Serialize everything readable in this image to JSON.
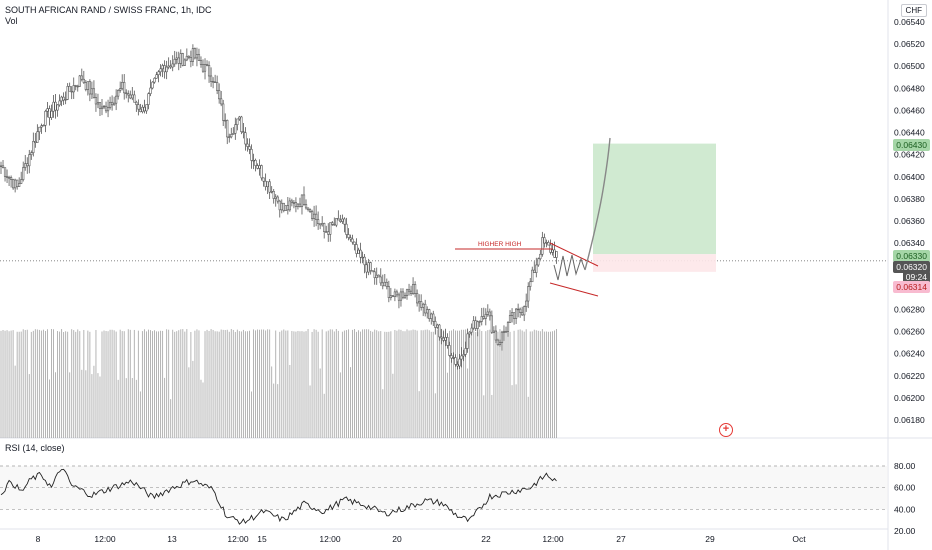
{
  "header": {
    "symbol_title": "SOUTH AFRICAN RAND / SWISS FRANC, 1h, IDC",
    "volume_label": "Vol",
    "currency": "CHF"
  },
  "rsi": {
    "label": "RSI (14, close)",
    "levels": [
      "80.00",
      "60.00",
      "40.00",
      "20.00"
    ]
  },
  "annotation": {
    "higher_high_text": "HIGHER HIGH"
  },
  "price_badges": {
    "target": "0.06430",
    "entry": "0.06330",
    "current": "0.06320",
    "countdown": "09:24",
    "stop": "0.06314"
  },
  "colors": {
    "candle": "#555555",
    "volume": "#9e9e9e",
    "trendline": "#c62828",
    "target_zone": "#c8e6c9",
    "stop_zone": "#fde7e9",
    "target_badge": "#a5d6a7",
    "stop_badge": "#f8bbd0",
    "current_badge": "#555555"
  },
  "chart_data": {
    "type": "candlestick",
    "title": "SOUTH AFRICAN RAND / SWISS FRANC, 1h, IDC",
    "interval": "1h",
    "y_axis": {
      "ticks": [
        "0.06540",
        "0.06520",
        "0.06500",
        "0.06480",
        "0.06460",
        "0.06440",
        "0.06420",
        "0.06400",
        "0.06380",
        "0.06360",
        "0.06340",
        "0.06280",
        "0.06260",
        "0.06240",
        "0.06220",
        "0.06200",
        "0.06180"
      ],
      "range": [
        0.06168,
        0.06545
      ]
    },
    "x_axis": {
      "ticks": [
        "8",
        "12:00",
        "13",
        "12:00",
        "15",
        "12:00",
        "20",
        "22",
        "12:00",
        "27",
        "29",
        "Oct"
      ]
    },
    "price_path_keypoints": [
      [
        0,
        0.0641
      ],
      [
        8,
        0.0639
      ],
      [
        20,
        0.0645
      ],
      [
        30,
        0.0647
      ],
      [
        40,
        0.0649
      ],
      [
        50,
        0.0646
      ],
      [
        60,
        0.0648
      ],
      [
        70,
        0.0646
      ],
      [
        80,
        0.065
      ],
      [
        95,
        0.0651
      ],
      [
        105,
        0.0649
      ],
      [
        112,
        0.0644
      ],
      [
        118,
        0.0645
      ],
      [
        124,
        0.0642
      ],
      [
        130,
        0.064
      ],
      [
        140,
        0.0637
      ],
      [
        150,
        0.0638
      ],
      [
        160,
        0.0635
      ],
      [
        168,
        0.0636
      ],
      [
        176,
        0.0633
      ],
      [
        185,
        0.0631
      ],
      [
        195,
        0.0629
      ],
      [
        203,
        0.063
      ],
      [
        210,
        0.0628
      ],
      [
        220,
        0.0625
      ],
      [
        226,
        0.0623
      ],
      [
        232,
        0.0626
      ],
      [
        240,
        0.0628
      ],
      [
        246,
        0.0625
      ],
      [
        252,
        0.0627
      ],
      [
        258,
        0.0628
      ],
      [
        268,
        0.0634
      ],
      [
        275,
        0.0633
      ]
    ],
    "projection": [
      [
        0.0633,
        0
      ],
      [
        0.0643,
        1
      ]
    ],
    "trade_setup": {
      "target": 0.0643,
      "entry": 0.0633,
      "stop": 0.06314
    },
    "rsi_series": {
      "name": "RSI (14, close)",
      "keypoints": [
        [
          0,
          55
        ],
        [
          5,
          66
        ],
        [
          10,
          56
        ],
        [
          15,
          68
        ],
        [
          20,
          72
        ],
        [
          25,
          60
        ],
        [
          30,
          79
        ],
        [
          35,
          62
        ],
        [
          45,
          53
        ],
        [
          55,
          60
        ],
        [
          65,
          66
        ],
        [
          75,
          51
        ],
        [
          85,
          60
        ],
        [
          95,
          67
        ],
        [
          105,
          58
        ],
        [
          112,
          33
        ],
        [
          120,
          28
        ],
        [
          130,
          38
        ],
        [
          140,
          30
        ],
        [
          150,
          45
        ],
        [
          160,
          38
        ],
        [
          170,
          49
        ],
        [
          180,
          44
        ],
        [
          190,
          36
        ],
        [
          200,
          41
        ],
        [
          210,
          48
        ],
        [
          218,
          46
        ],
        [
          226,
          34
        ],
        [
          232,
          29
        ],
        [
          242,
          52
        ],
        [
          252,
          56
        ],
        [
          262,
          60
        ],
        [
          270,
          72
        ],
        [
          275,
          65
        ]
      ],
      "ylim": [
        20,
        80
      ]
    }
  }
}
